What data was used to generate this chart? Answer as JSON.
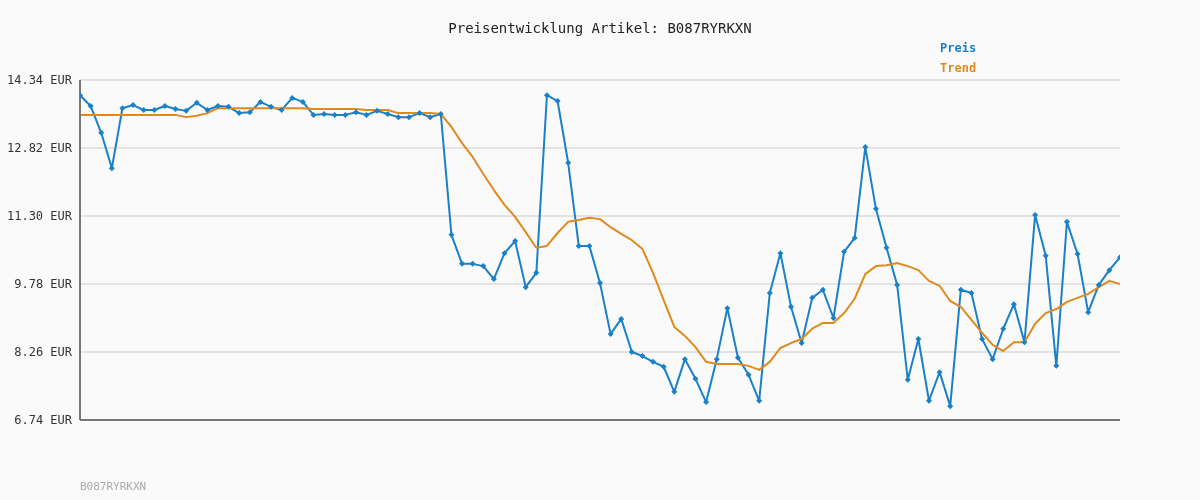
{
  "chart_data": {
    "type": "line",
    "title": "Preisentwicklung Artikel: B087RYRKXN",
    "annotations": [
      "B087RYRKXN"
    ],
    "categories": [
      null,
      null,
      null,
      null,
      null,
      null,
      null,
      null,
      null,
      null,
      null,
      null,
      null,
      null,
      null,
      null,
      null,
      null,
      null,
      null,
      null,
      null,
      null,
      null,
      null,
      null,
      null,
      null,
      null,
      null,
      null,
      null,
      null,
      null,
      null,
      null,
      null,
      null,
      null,
      null,
      null,
      null,
      null,
      null,
      null,
      null,
      null,
      null,
      null,
      null,
      null,
      null,
      null,
      null,
      null,
      null,
      null,
      null,
      null,
      null,
      null,
      null,
      null,
      null,
      null,
      null,
      null,
      null,
      null,
      null,
      null,
      null,
      null,
      null,
      null,
      null,
      null,
      null,
      null,
      null,
      null,
      null,
      null,
      null,
      null,
      null,
      null,
      null,
      null,
      null,
      null,
      null,
      null,
      null,
      null,
      null,
      null,
      null,
      null
    ],
    "series": [
      {
        "name": "Preis",
        "color": "#1a80c8",
        "marker": "diamond",
        "values": [
          14.0,
          13.76,
          13.16,
          12.37,
          13.71,
          13.78,
          13.67,
          13.67,
          13.76,
          13.69,
          13.65,
          13.83,
          13.67,
          13.76,
          13.74,
          13.6,
          13.62,
          13.85,
          13.74,
          13.67,
          13.94,
          13.85,
          13.56,
          13.58,
          13.56,
          13.56,
          13.62,
          13.56,
          13.65,
          13.58,
          13.51,
          13.51,
          13.6,
          13.51,
          13.58,
          10.88,
          10.23,
          10.23,
          10.18,
          9.89,
          10.47,
          10.74,
          9.71,
          10.03,
          14.0,
          13.87,
          12.49,
          10.63,
          10.63,
          9.8,
          8.66,
          9.0,
          8.26,
          8.17,
          8.04,
          7.93,
          7.37,
          8.1,
          7.66,
          7.14,
          8.1,
          9.24,
          8.13,
          7.75,
          7.17,
          9.58,
          10.47,
          9.27,
          8.46,
          9.47,
          9.65,
          9.02,
          10.5,
          10.81,
          12.84,
          11.46,
          10.59,
          9.76,
          7.64,
          8.55,
          7.17,
          7.81,
          7.05,
          9.65,
          9.58,
          8.55,
          8.1,
          8.78,
          9.33,
          8.48,
          11.32,
          10.41,
          7.95,
          11.17,
          10.45,
          9.15,
          9.76,
          10.09,
          10.38
        ]
      },
      {
        "name": "Trend",
        "color": "#e08a1e",
        "marker": "none",
        "values": [
          13.56,
          13.56,
          13.56,
          13.56,
          13.56,
          13.56,
          13.56,
          13.56,
          13.56,
          13.56,
          13.51,
          13.54,
          13.6,
          13.71,
          13.71,
          13.71,
          13.71,
          13.71,
          13.71,
          13.71,
          13.71,
          13.71,
          13.69,
          13.69,
          13.69,
          13.69,
          13.69,
          13.67,
          13.67,
          13.67,
          13.6,
          13.6,
          13.6,
          13.6,
          13.58,
          13.29,
          12.93,
          12.62,
          12.24,
          11.88,
          11.55,
          11.28,
          10.94,
          10.59,
          10.63,
          10.92,
          11.17,
          11.21,
          11.26,
          11.23,
          11.05,
          10.9,
          10.76,
          10.56,
          10.03,
          9.42,
          8.82,
          8.62,
          8.37,
          8.04,
          7.99,
          7.99,
          7.99,
          7.95,
          7.86,
          8.04,
          8.35,
          8.46,
          8.55,
          8.78,
          8.91,
          8.91,
          9.13,
          9.45,
          10.0,
          10.18,
          10.2,
          10.25,
          10.18,
          10.09,
          9.85,
          9.74,
          9.4,
          9.27,
          8.98,
          8.69,
          8.42,
          8.28,
          8.48,
          8.48,
          8.89,
          9.13,
          9.22,
          9.38,
          9.47,
          9.56,
          9.71,
          9.85,
          9.78
        ]
      }
    ],
    "ylim": [
      6.74,
      14.34
    ],
    "yticks": [
      {
        "value": 6.74,
        "label": "6.74 EUR"
      },
      {
        "value": 8.26,
        "label": "8.26 EUR"
      },
      {
        "value": 9.78,
        "label": "9.78 EUR"
      },
      {
        "value": 11.3,
        "label": "11.30 EUR"
      },
      {
        "value": 12.82,
        "label": "12.82 EUR"
      },
      {
        "value": 14.34,
        "label": "14.34 EUR"
      }
    ],
    "grid": "y",
    "legend": "top right",
    "tick_labels": "y"
  }
}
